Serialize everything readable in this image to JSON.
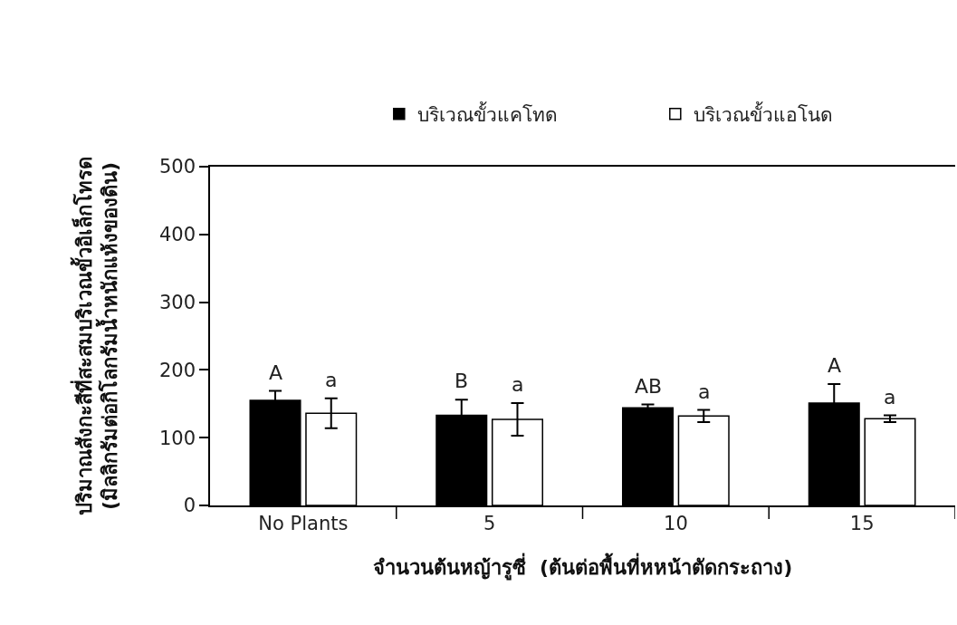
{
  "chart_data": {
    "type": "bar",
    "xlabel": "จำนวนต้นหญ้ารูซี่  (ต้นต่อพื้นที่หหน้าตัดกระถาง)",
    "ylabel": "ปริมาณสังกะสีที่สะสมบริเวณขั้วอิเล็กโทรด\n(มิลลิกรัมต่อกิโลกรัมน้ำหนักแห้งของดิน)",
    "categories": [
      "No Plants",
      "5",
      "10",
      "15"
    ],
    "series": [
      {
        "name": "บริเวณขั้วแคโทด",
        "color": "#000000",
        "values": [
          155,
          133,
          144,
          151
        ],
        "errors": [
          14,
          23,
          5,
          28
        ],
        "value_labels": [
          "A",
          "B",
          "AB",
          "A"
        ]
      },
      {
        "name": "บริเวณขั้วแอโนด",
        "color": "#ffffff",
        "values": [
          136,
          127,
          132,
          128
        ],
        "errors": [
          22,
          24,
          9,
          5
        ],
        "value_labels": [
          "a",
          "a",
          "a",
          "a"
        ]
      }
    ],
    "ylim": [
      0,
      500
    ],
    "yticks": [
      0,
      100,
      200,
      300,
      400,
      500
    ],
    "grid": false,
    "legend": "top"
  }
}
